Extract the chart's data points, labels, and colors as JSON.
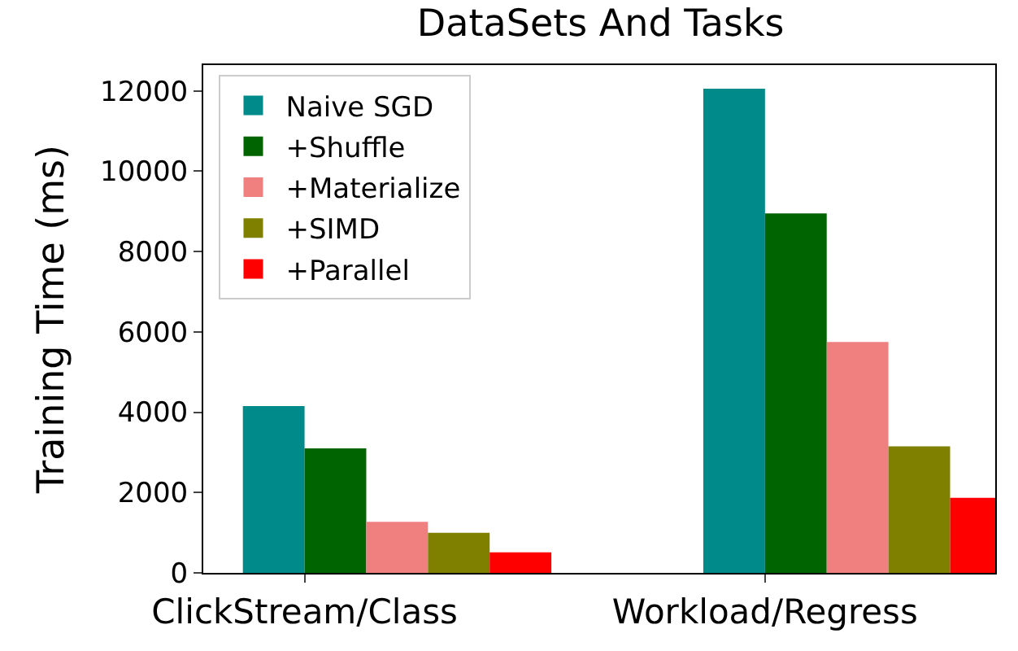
{
  "chart_data": {
    "type": "bar",
    "title": "DataSets And Tasks",
    "ylabel": "Training Time (ms)",
    "categories": [
      "ClickStream/Class",
      "Workload/Regress"
    ],
    "series": [
      {
        "name": "Naive SGD",
        "color": "#008b8b",
        "values": [
          4150,
          12050
        ]
      },
      {
        "name": "+Shuffle",
        "color": "#006400",
        "values": [
          3100,
          8950
        ]
      },
      {
        "name": "+Materialize",
        "color": "#f08080",
        "values": [
          1270,
          5750
        ]
      },
      {
        "name": "+SIMD",
        "color": "#808000",
        "values": [
          1000,
          3150
        ]
      },
      {
        "name": "+Parallel",
        "color": "#ff0000",
        "values": [
          510,
          1870
        ]
      }
    ],
    "ylim": [
      0,
      12640
    ],
    "yticks": [
      0,
      2000,
      4000,
      6000,
      8000,
      10000,
      12000
    ],
    "legend": "top left"
  }
}
